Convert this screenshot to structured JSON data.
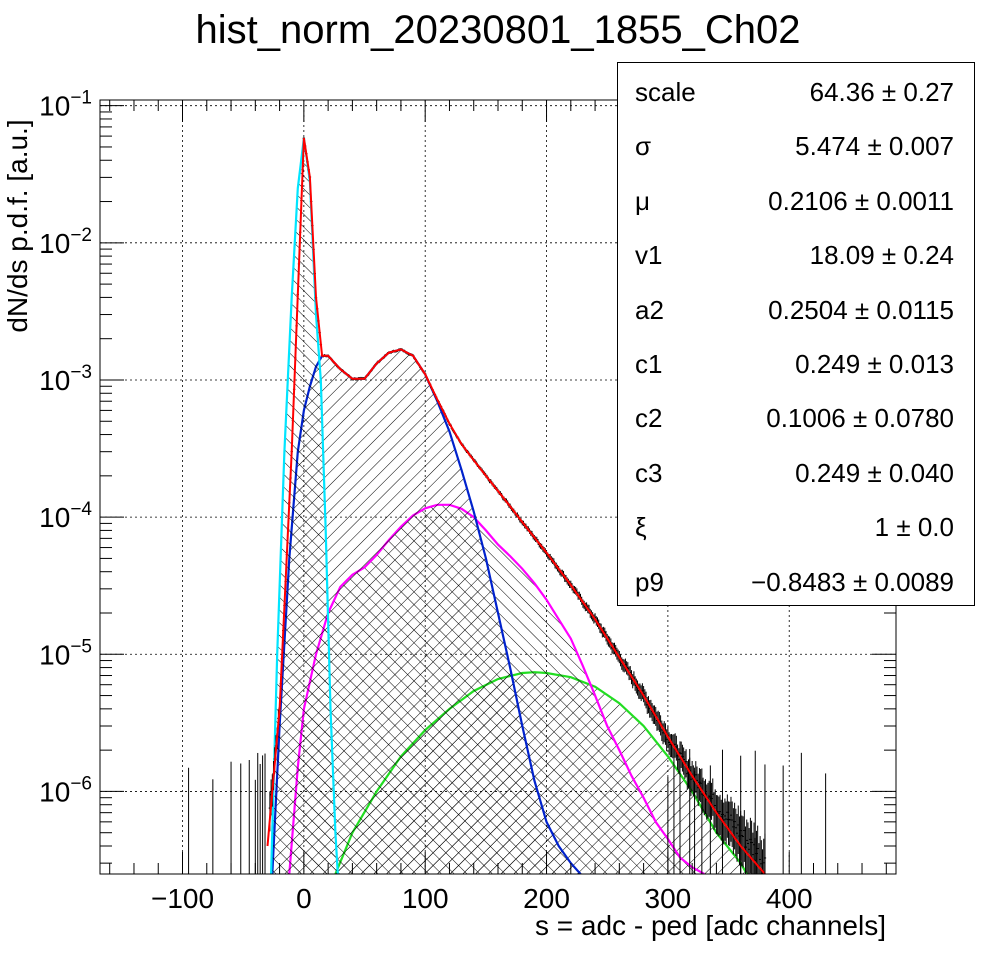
{
  "title": "hist_norm_20230801_1855_Ch02",
  "chart_data": {
    "type": "line",
    "title": "hist_norm_20230801_1855_Ch02",
    "xlabel": "s = adc - ped [adc channels]",
    "ylabel": "dN/ds p.d.f. [a.u.]",
    "xlim": [
      -168,
      488
    ],
    "ylim": [
      2.5e-07,
      0.11
    ],
    "yscale": "log",
    "x_ticks": [
      -100,
      0,
      100,
      200,
      300,
      400
    ],
    "x_tick_labels": [
      "−100",
      "0",
      "100",
      "200",
      "300",
      "400"
    ],
    "y_ticks": [
      1e-06,
      1e-05,
      0.0001,
      0.001,
      0.01,
      0.1
    ],
    "y_tick_labels": [
      {
        "base": "10",
        "exp": "−6"
      },
      {
        "base": "10",
        "exp": "−5"
      },
      {
        "base": "10",
        "exp": "−4"
      },
      {
        "base": "10",
        "exp": "−3"
      },
      {
        "base": "10",
        "exp": "−2"
      },
      {
        "base": "10",
        "exp": "−1"
      }
    ],
    "grid": true,
    "series": [
      {
        "color": "#000000",
        "style": "histogram-errorbars",
        "x": [
          -30,
          -20,
          -10,
          0,
          5,
          10,
          15,
          20,
          30,
          40,
          50,
          60,
          70,
          80,
          90,
          100,
          110,
          120,
          130,
          140,
          150,
          160,
          170,
          180,
          200,
          220,
          240,
          260,
          280,
          300,
          320,
          340,
          360,
          380
        ],
        "y": [
          5e-07,
          4e-06,
          0.0003,
          0.058,
          0.03,
          0.004,
          0.0015,
          0.0015,
          0.0012,
          0.00102,
          0.00102,
          0.00132,
          0.00158,
          0.00167,
          0.0015,
          0.0011,
          0.00072,
          0.00048,
          0.00034,
          0.00026,
          0.0002,
          0.000155,
          0.00012,
          9.2e-05,
          5.5e-05,
          3.2e-05,
          1.8e-05,
          9.5e-06,
          5e-06,
          2.5e-06,
          1.3e-06,
          8e-07,
          5e-07,
          3e-07
        ]
      },
      {
        "color": "#ff0000",
        "style": "line",
        "x": [
          -30,
          -20,
          -10,
          0,
          5,
          10,
          15,
          20,
          30,
          40,
          50,
          60,
          70,
          80,
          90,
          100,
          110,
          120,
          130,
          140,
          150,
          160,
          170,
          180,
          200,
          220,
          240,
          260,
          280,
          300,
          320,
          340,
          360,
          380
        ],
        "y": [
          4e-07,
          4e-06,
          0.0003,
          0.058,
          0.03,
          0.004,
          0.0015,
          0.0015,
          0.0012,
          0.00102,
          0.00102,
          0.00132,
          0.00158,
          0.00167,
          0.0015,
          0.0011,
          0.00072,
          0.00048,
          0.00034,
          0.00026,
          0.0002,
          0.000155,
          0.00012,
          9.2e-05,
          5.5e-05,
          3.2e-05,
          1.8e-05,
          9.5e-06,
          5e-06,
          2.5e-06,
          1.3e-06,
          7e-07,
          4e-07,
          2.5e-07
        ]
      },
      {
        "color": "#00e5ff",
        "style": "filled-hatched",
        "x": [
          -27,
          -22,
          -16,
          -10,
          -5,
          0,
          5,
          10,
          14,
          18,
          22,
          26,
          28
        ],
        "y": [
          2.5e-07,
          1e-05,
          0.0003,
          0.004,
          0.025,
          0.058,
          0.028,
          0.003,
          0.001,
          8e-05,
          4e-06,
          5e-07,
          2.5e-07
        ]
      },
      {
        "color": "#0022cc",
        "style": "filled-hatched",
        "x": [
          -26,
          -20,
          -12,
          -5,
          0,
          5,
          10,
          15,
          20,
          30,
          40,
          50,
          60,
          70,
          80,
          90,
          100,
          110,
          120,
          130,
          140,
          150,
          160,
          170,
          180,
          190,
          200,
          210,
          220,
          228
        ],
        "y": [
          2.5e-07,
          3e-06,
          5e-05,
          0.0003,
          0.0006,
          0.0009,
          0.00125,
          0.0015,
          0.0015,
          0.0012,
          0.00102,
          0.00102,
          0.00132,
          0.00158,
          0.00167,
          0.0015,
          0.0011,
          0.0007,
          0.00042,
          0.00022,
          0.00011,
          5e-05,
          2e-05,
          8e-06,
          3e-06,
          1.2e-06,
          6e-07,
          4e-07,
          3e-07,
          2.5e-07
        ]
      },
      {
        "color": "#ff00ff",
        "style": "filled-hatched",
        "x": [
          -12,
          -5,
          0,
          10,
          20,
          30,
          40,
          50,
          60,
          70,
          80,
          90,
          100,
          110,
          120,
          130,
          140,
          150,
          160,
          170,
          180,
          190,
          200,
          210,
          220,
          230,
          240,
          250,
          260,
          270,
          280,
          290,
          300,
          310,
          320,
          330
        ],
        "y": [
          2.5e-07,
          1.5e-06,
          4e-06,
          1e-05,
          2e-05,
          3.1e-05,
          3.8e-05,
          4.3e-05,
          5.3e-05,
          6.8e-05,
          8.5e-05,
          0.000103,
          0.000116,
          0.000123,
          0.000123,
          0.000115,
          0.0001,
          8e-05,
          6.3e-05,
          5.2e-05,
          4.2e-05,
          3.3e-05,
          2.5e-05,
          1.8e-05,
          1.3e-05,
          8.2e-06,
          5e-06,
          3e-06,
          2e-06,
          1.3e-06,
          9e-07,
          6e-07,
          4.5e-07,
          3.3e-07,
          2.8e-07,
          2.5e-07
        ]
      },
      {
        "color": "#22dd22",
        "style": "filled-hatched",
        "x": [
          26,
          40,
          60,
          80,
          100,
          120,
          140,
          160,
          180,
          190,
          200,
          220,
          240,
          260,
          280,
          300,
          320,
          340,
          360,
          365
        ],
        "y": [
          2.5e-07,
          5e-07,
          1e-06,
          1.8e-06,
          2.8e-06,
          4e-06,
          5.4e-06,
          6.6e-06,
          7.3e-06,
          7.4e-06,
          7.3e-06,
          6.8e-06,
          5.8e-06,
          4.4e-06,
          3e-06,
          1.8e-06,
          1e-06,
          5e-07,
          3e-07,
          2.5e-07
        ]
      }
    ]
  },
  "stats": {
    "rows": [
      {
        "name": "scale",
        "value": "64.36 ± 0.27"
      },
      {
        "name": "σ",
        "value": "5.474 ± 0.007"
      },
      {
        "name": "μ",
        "value": "0.2106 ± 0.0011"
      },
      {
        "name": "v1",
        "value": "18.09 ± 0.24"
      },
      {
        "name": "a2",
        "value": "0.2504 ± 0.0115"
      },
      {
        "name": "c1",
        "value": "0.249 ± 0.013"
      },
      {
        "name": "c2",
        "value": "0.1006 ± 0.0780"
      },
      {
        "name": "c3",
        "value": "0.249 ± 0.040"
      },
      {
        "name": "ξ",
        "value": "1 ± 0.0"
      },
      {
        "name": "p9",
        "value": "−0.8483 ± 0.0089"
      }
    ]
  }
}
